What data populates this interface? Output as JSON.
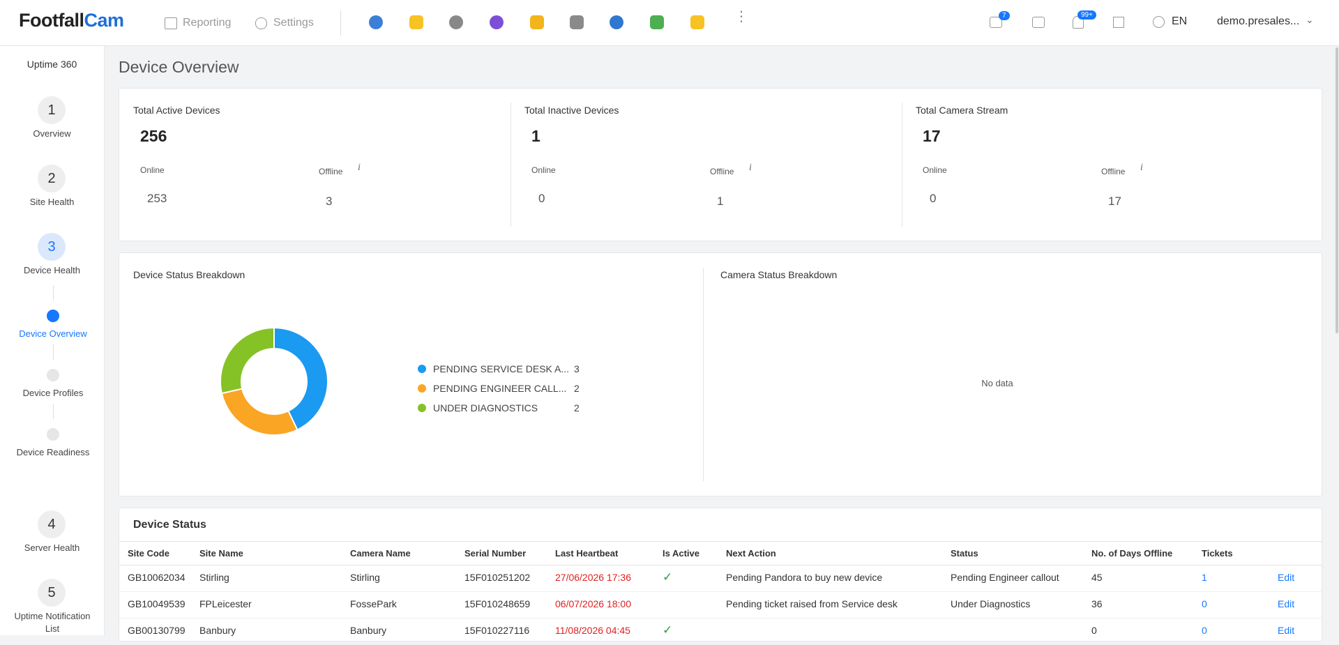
{
  "header": {
    "logo_prefix": "Footfall",
    "logo_suffix": "Cam",
    "nav": [
      "Reporting",
      "Settings"
    ],
    "tickets_badge": "7",
    "notifications_badge": "99+",
    "language": "EN",
    "user": "demo.presales..."
  },
  "sidebar": {
    "title": "Uptime 360",
    "items": [
      {
        "number": 1,
        "label": "Overview"
      },
      {
        "number": 2,
        "label": "Site Health"
      },
      {
        "number": 3,
        "label": "Device Health"
      },
      {
        "label": "Device Overview"
      },
      {
        "label": "Device Profiles"
      },
      {
        "label": "Device Readiness"
      },
      {
        "number": 4,
        "label": "Server Health"
      },
      {
        "number": 5,
        "label": "Uptime Notification List"
      }
    ]
  },
  "page_title": "Device Overview",
  "summary": [
    {
      "title": "Total Active Devices",
      "total": 256,
      "online_label": "Online",
      "online": 253,
      "offline_label": "Offline",
      "offline": 3
    },
    {
      "title": "Total Inactive Devices",
      "total": 1,
      "online_label": "Online",
      "online": 0,
      "offline_label": "Offline",
      "offline": 1
    },
    {
      "title": "Total Camera Stream",
      "total": 17,
      "online_label": "Online",
      "online": 0,
      "offline_label": "Offline",
      "offline": 17
    }
  ],
  "device_status_breakdown": {
    "title": "Device Status Breakdown",
    "type": "donut",
    "items": [
      {
        "label": "PENDING SERVICE DESK A...",
        "value": 3,
        "color": "#1a9af0"
      },
      {
        "label": "PENDING ENGINEER CALL...",
        "value": 2,
        "color": "#fba524"
      },
      {
        "label": "UNDER DIAGNOSTICS",
        "value": 2,
        "color": "#85c226"
      }
    ]
  },
  "camera_status_breakdown": {
    "title": "Camera Status Breakdown",
    "empty_text": "No data"
  },
  "device_status": {
    "title": "Device Status",
    "columns": [
      "Site Code",
      "Site Name",
      "Camera Name",
      "Serial Number",
      "Last Heartbeat",
      "Is Active",
      "Next Action",
      "Status",
      "No. of Days Offline",
      "Tickets"
    ],
    "rows": [
      {
        "cells": [
          "GB10062034",
          "Stirling",
          "Stirling",
          "15F010251202",
          "27/06/2026 17:36",
          "✓",
          "Pending Pandora to buy new device",
          "Pending Engineer callout",
          45,
          1
        ],
        "action": "Edit"
      },
      {
        "cells": [
          "GB10049539",
          "FPLeicester",
          "FossePark",
          "15F010248659",
          "06/07/2026 18:00",
          null,
          "Pending ticket raised from Service desk",
          "Under Diagnostics",
          36,
          0
        ],
        "action": "Edit"
      },
      {
        "cells": [
          "GB00130799",
          "Banbury",
          "Banbury",
          "15F010227116",
          "11/08/2026 04:45",
          "✓",
          null,
          null,
          0,
          0
        ],
        "action": "Edit"
      }
    ]
  }
}
